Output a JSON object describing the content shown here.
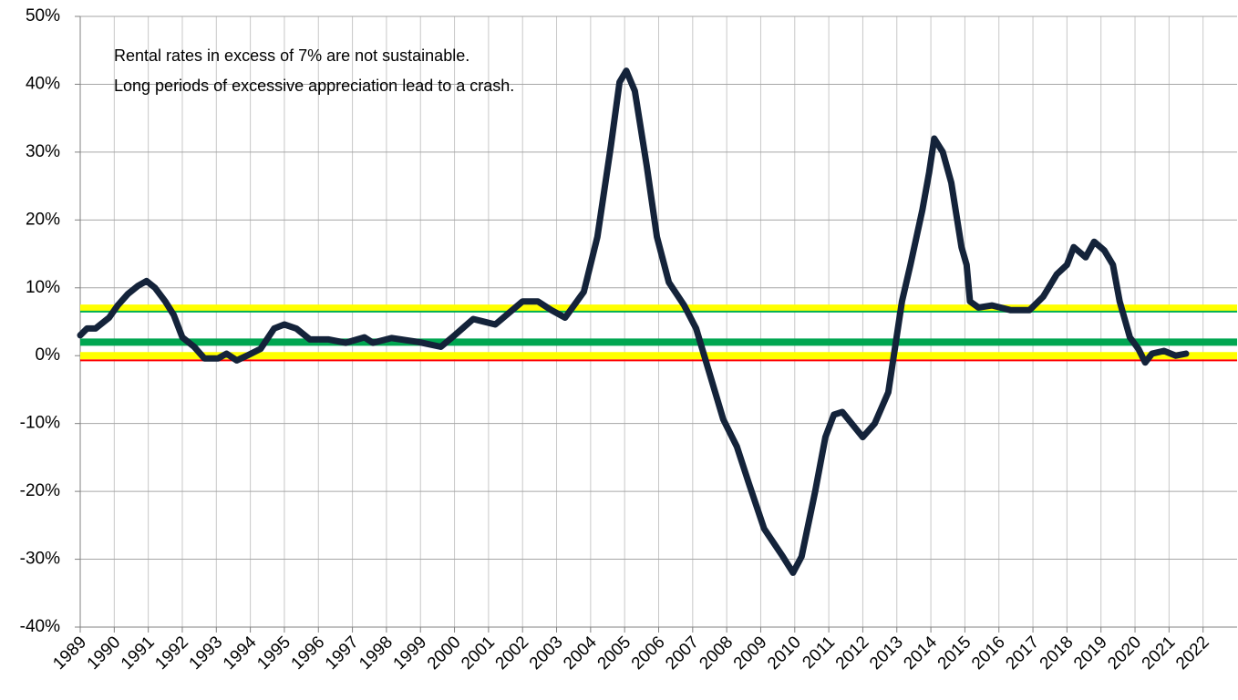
{
  "chart_data": {
    "type": "line",
    "annotations": [
      "Rental rates in excess of 7% are not sustainable.",
      "Long periods of excessive appreciation lead to a crash."
    ],
    "xlim": [
      1989,
      2023
    ],
    "xticks": [
      1989,
      1990,
      1991,
      1992,
      1993,
      1994,
      1995,
      1996,
      1997,
      1998,
      1999,
      2000,
      2001,
      2002,
      2003,
      2004,
      2005,
      2006,
      2007,
      2008,
      2009,
      2010,
      2011,
      2012,
      2013,
      2014,
      2015,
      2016,
      2017,
      2018,
      2019,
      2020,
      2021,
      2022
    ],
    "ylim": [
      -40,
      50
    ],
    "yticks": [
      {
        "value": -40,
        "label": "-40%"
      },
      {
        "value": -30,
        "label": "-30%"
      },
      {
        "value": -20,
        "label": "-20%"
      },
      {
        "value": -10,
        "label": "-10%"
      },
      {
        "value": 0,
        "label": "0%"
      },
      {
        "value": 10,
        "label": "10%"
      },
      {
        "value": 20,
        "label": "20%"
      },
      {
        "value": 30,
        "label": "30%"
      },
      {
        "value": 40,
        "label": "40%"
      },
      {
        "value": 50,
        "label": "50%"
      }
    ],
    "grid": true,
    "reference_lines": [
      {
        "value": 7,
        "color": "#ffff00"
      },
      {
        "value": 6.5,
        "color": "#00b050"
      },
      {
        "value": 2,
        "color": "#00a651"
      },
      {
        "value": 0,
        "color": "#ffff00"
      },
      {
        "value": -0.7,
        "color": "#ff0000"
      }
    ],
    "series": [
      {
        "color": "#14233a",
        "x": [
          1989.0,
          1989.2,
          1989.45,
          1989.85,
          1990.1,
          1990.4,
          1990.7,
          1990.95,
          1991.2,
          1991.5,
          1991.75,
          1992.0,
          1992.35,
          1992.65,
          1993.05,
          1993.3,
          1993.6,
          1993.9,
          1994.3,
          1994.7,
          1995.0,
          1995.35,
          1995.75,
          1996.3,
          1996.8,
          1997.35,
          1997.6,
          1998.15,
          1998.95,
          1999.6,
          2000.0,
          2000.55,
          2000.8,
          2001.2,
          2001.6,
          2002.0,
          2002.45,
          2002.85,
          2003.25,
          2003.8,
          2004.2,
          2004.6,
          2004.85,
          2005.05,
          2005.3,
          2005.65,
          2005.95,
          2006.3,
          2006.75,
          2007.1,
          2007.5,
          2007.9,
          2008.3,
          2008.65,
          2009.1,
          2009.65,
          2009.95,
          2010.2,
          2010.6,
          2010.9,
          2011.15,
          2011.4,
          2011.8,
          2012.0,
          2012.35,
          2012.75,
          2013.15,
          2013.4,
          2013.75,
          2013.95,
          2014.1,
          2014.35,
          2014.6,
          2014.9,
          2015.05,
          2015.15,
          2015.4,
          2015.8,
          2016.35,
          2016.9,
          2017.3,
          2017.7,
          2018.0,
          2018.2,
          2018.55,
          2018.8,
          2019.1,
          2019.35,
          2019.55,
          2019.85,
          2020.1,
          2020.3,
          2020.5,
          2020.85,
          2021.2,
          2021.5
        ],
        "values": [
          3,
          4,
          4,
          5.6,
          7.4,
          9.1,
          10.3,
          11,
          10,
          8,
          6,
          2.7,
          1.3,
          -0.4,
          -0.4,
          0.3,
          -0.7,
          0,
          1,
          4,
          4.6,
          4,
          2.4,
          2.4,
          1.9,
          2.7,
          1.9,
          2.6,
          2,
          1.3,
          3,
          5.4,
          5.1,
          4.6,
          6.3,
          8,
          8,
          6.7,
          5.6,
          9.4,
          17.5,
          31,
          40.3,
          42,
          39,
          28,
          17.5,
          10.8,
          7.4,
          4,
          -2.7,
          -9.4,
          -13.4,
          -18.8,
          -25.5,
          -29.6,
          -32,
          -29.6,
          -20,
          -12,
          -8.7,
          -8.3,
          -10.8,
          -12,
          -10,
          -5.4,
          8,
          13.4,
          21.5,
          27,
          32,
          30,
          25.5,
          16,
          13.4,
          8,
          7.1,
          7.4,
          6.7,
          6.7,
          8.7,
          12,
          13.4,
          16,
          14.5,
          16.8,
          15.5,
          13.4,
          8,
          2.7,
          1,
          -1,
          0.3,
          0.7,
          0,
          0.3
        ]
      }
    ]
  }
}
